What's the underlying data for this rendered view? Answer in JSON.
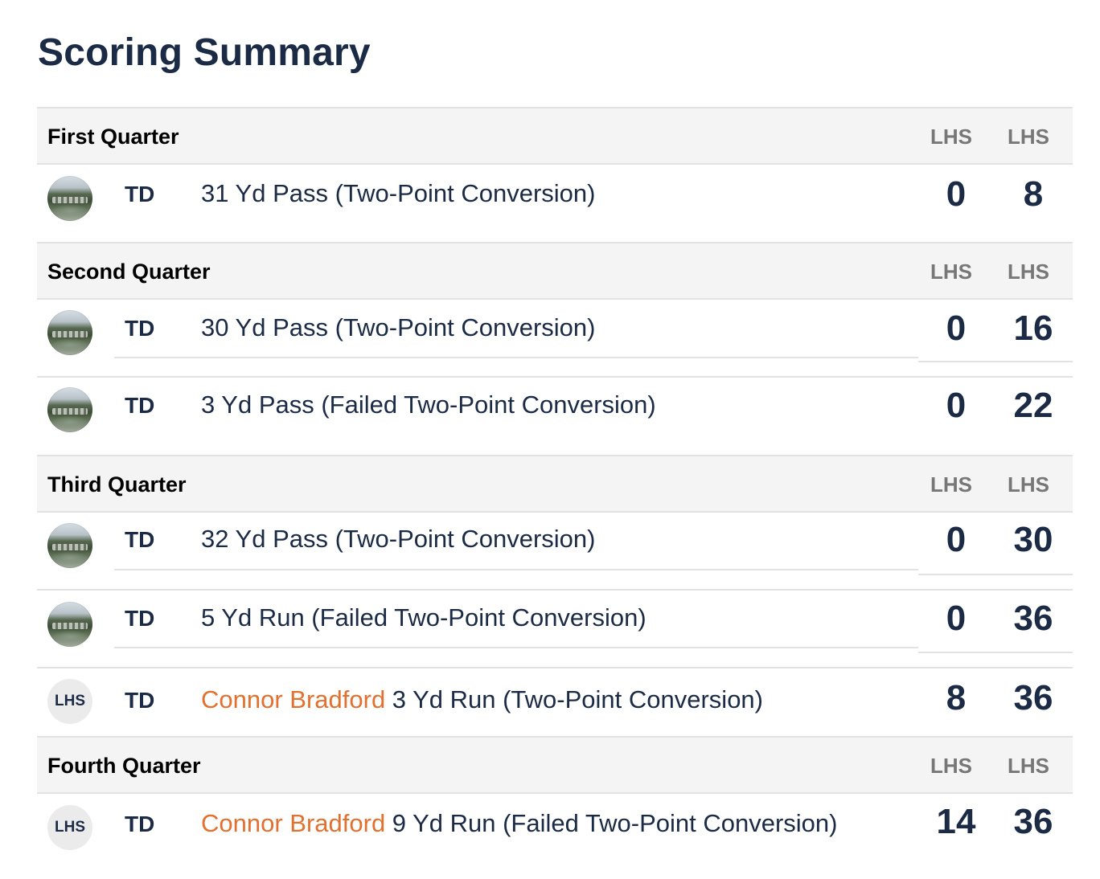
{
  "title": "Scoring Summary",
  "quarters": [
    {
      "name": "First Quarter",
      "team1": "LHS",
      "team2": "LHS",
      "plays": [
        {
          "type": "TD",
          "player": "",
          "description": "31 Yd Pass (Two-Point Conversion)",
          "score1": "0",
          "score2": "8"
        }
      ]
    },
    {
      "name": "Second Quarter",
      "team1": "LHS",
      "team2": "LHS",
      "plays": [
        {
          "type": "TD",
          "player": "",
          "description": "30 Yd Pass (Two-Point Conversion)",
          "score1": "0",
          "score2": "16"
        },
        {
          "type": "TD",
          "player": "",
          "description": "3 Yd Pass (Failed Two-Point Conversion)",
          "score1": "0",
          "score2": "22"
        }
      ]
    },
    {
      "name": "Third Quarter",
      "team1": "LHS",
      "team2": "LHS",
      "plays": [
        {
          "type": "TD",
          "player": "",
          "description": "32 Yd Pass (Two-Point Conversion)",
          "score1": "0",
          "score2": "30"
        },
        {
          "type": "TD",
          "player": "",
          "description": "5 Yd Run (Failed Two-Point Conversion)",
          "score1": "0",
          "score2": "36"
        },
        {
          "type": "TD",
          "player": "Connor Bradford",
          "description": " 3 Yd Run (Two-Point Conversion)",
          "score1": "8",
          "score2": "36",
          "team_logo": "LHS"
        }
      ]
    },
    {
      "name": "Fourth Quarter",
      "team1": "LHS",
      "team2": "LHS",
      "plays": [
        {
          "type": "TD",
          "player": "Connor Bradford",
          "description": " 9 Yd Run (Failed Two-Point Conversion)",
          "score1": "14",
          "score2": "36",
          "team_logo": "LHS"
        }
      ]
    }
  ]
}
